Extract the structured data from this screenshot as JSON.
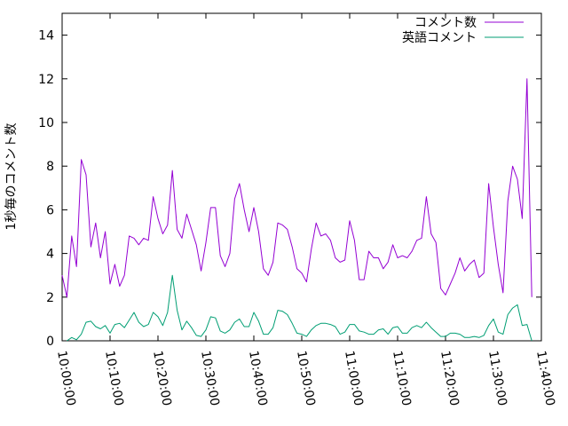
{
  "chart_data": {
    "type": "line",
    "ylabel": "1秒毎のコメント数",
    "xlabel": "",
    "ylim": [
      0,
      15
    ],
    "xlim": [
      "10:00:00",
      "11:40:00"
    ],
    "y_ticks": [
      0,
      2,
      4,
      6,
      8,
      10,
      12,
      14
    ],
    "x_ticks": [
      "10:00:00",
      "10:10:00",
      "10:20:00",
      "10:30:00",
      "10:40:00",
      "10:50:00",
      "11:00:00",
      "11:10:00",
      "11:20:00",
      "11:30:00",
      "11:40:00"
    ],
    "legend_position": "top-right",
    "grid": false,
    "series": [
      {
        "name": "コメント数",
        "color": "#9400d3",
        "points": [
          [
            "10:00:00",
            3.0
          ],
          [
            "10:01:00",
            2.0
          ],
          [
            "10:02:00",
            4.8
          ],
          [
            "10:03:00",
            3.4
          ],
          [
            "10:04:00",
            8.3
          ],
          [
            "10:05:00",
            7.6
          ],
          [
            "10:06:00",
            4.3
          ],
          [
            "10:07:00",
            5.4
          ],
          [
            "10:08:00",
            3.8
          ],
          [
            "10:09:00",
            5.0
          ],
          [
            "10:10:00",
            2.6
          ],
          [
            "10:11:00",
            3.5
          ],
          [
            "10:12:00",
            2.5
          ],
          [
            "10:13:00",
            3.0
          ],
          [
            "10:14:00",
            4.8
          ],
          [
            "10:15:00",
            4.7
          ],
          [
            "10:16:00",
            4.4
          ],
          [
            "10:17:00",
            4.7
          ],
          [
            "10:18:00",
            4.6
          ],
          [
            "10:19:00",
            6.6
          ],
          [
            "10:20:00",
            5.6
          ],
          [
            "10:21:00",
            4.9
          ],
          [
            "10:22:00",
            5.3
          ],
          [
            "10:23:00",
            7.8
          ],
          [
            "10:24:00",
            5.1
          ],
          [
            "10:25:00",
            4.7
          ],
          [
            "10:26:00",
            5.8
          ],
          [
            "10:27:00",
            5.1
          ],
          [
            "10:28:00",
            4.4
          ],
          [
            "10:29:00",
            3.2
          ],
          [
            "10:30:00",
            4.5
          ],
          [
            "10:31:00",
            6.1
          ],
          [
            "10:32:00",
            6.1
          ],
          [
            "10:33:00",
            3.9
          ],
          [
            "10:34:00",
            3.4
          ],
          [
            "10:35:00",
            4.0
          ],
          [
            "10:36:00",
            6.5
          ],
          [
            "10:37:00",
            7.2
          ],
          [
            "10:38:00",
            6.0
          ],
          [
            "10:39:00",
            5.0
          ],
          [
            "10:40:00",
            6.1
          ],
          [
            "10:41:00",
            5.0
          ],
          [
            "10:42:00",
            3.3
          ],
          [
            "10:43:00",
            3.0
          ],
          [
            "10:44:00",
            3.6
          ],
          [
            "10:45:00",
            5.4
          ],
          [
            "10:46:00",
            5.3
          ],
          [
            "10:47:00",
            5.1
          ],
          [
            "10:48:00",
            4.3
          ],
          [
            "10:49:00",
            3.3
          ],
          [
            "10:50:00",
            3.1
          ],
          [
            "10:51:00",
            2.7
          ],
          [
            "10:52:00",
            4.2
          ],
          [
            "10:53:00",
            5.4
          ],
          [
            "10:54:00",
            4.8
          ],
          [
            "10:55:00",
            4.9
          ],
          [
            "10:56:00",
            4.6
          ],
          [
            "10:57:00",
            3.8
          ],
          [
            "10:58:00",
            3.6
          ],
          [
            "10:59:00",
            3.7
          ],
          [
            "11:00:00",
            5.5
          ],
          [
            "11:01:00",
            4.6
          ],
          [
            "11:02:00",
            2.8
          ],
          [
            "11:03:00",
            2.8
          ],
          [
            "11:04:00",
            4.1
          ],
          [
            "11:05:00",
            3.8
          ],
          [
            "11:06:00",
            3.8
          ],
          [
            "11:07:00",
            3.3
          ],
          [
            "11:08:00",
            3.6
          ],
          [
            "11:09:00",
            4.4
          ],
          [
            "11:10:00",
            3.8
          ],
          [
            "11:11:00",
            3.9
          ],
          [
            "11:12:00",
            3.8
          ],
          [
            "11:13:00",
            4.1
          ],
          [
            "11:14:00",
            4.6
          ],
          [
            "11:15:00",
            4.7
          ],
          [
            "11:16:00",
            6.6
          ],
          [
            "11:17:00",
            4.9
          ],
          [
            "11:18:00",
            4.5
          ],
          [
            "11:19:00",
            2.4
          ],
          [
            "11:20:00",
            2.1
          ],
          [
            "11:21:00",
            2.6
          ],
          [
            "11:22:00",
            3.1
          ],
          [
            "11:23:00",
            3.8
          ],
          [
            "11:24:00",
            3.2
          ],
          [
            "11:25:00",
            3.5
          ],
          [
            "11:26:00",
            3.7
          ],
          [
            "11:27:00",
            2.9
          ],
          [
            "11:28:00",
            3.1
          ],
          [
            "11:29:00",
            7.2
          ],
          [
            "11:30:00",
            5.2
          ],
          [
            "11:31:00",
            3.5
          ],
          [
            "11:32:00",
            2.2
          ],
          [
            "11:33:00",
            6.4
          ],
          [
            "11:34:00",
            8.0
          ],
          [
            "11:35:00",
            7.4
          ],
          [
            "11:36:00",
            5.6
          ],
          [
            "11:37:00",
            12.0
          ],
          [
            "11:38:00",
            2.0
          ]
        ]
      },
      {
        "name": "英語コメント",
        "color": "#009e73",
        "points": [
          [
            "10:01:00",
            0.0
          ],
          [
            "10:02:00",
            0.15
          ],
          [
            "10:03:00",
            0.05
          ],
          [
            "10:04:00",
            0.3
          ],
          [
            "10:05:00",
            0.85
          ],
          [
            "10:06:00",
            0.9
          ],
          [
            "10:07:00",
            0.65
          ],
          [
            "10:08:00",
            0.55
          ],
          [
            "10:09:00",
            0.7
          ],
          [
            "10:10:00",
            0.35
          ],
          [
            "10:11:00",
            0.75
          ],
          [
            "10:12:00",
            0.8
          ],
          [
            "10:13:00",
            0.6
          ],
          [
            "10:14:00",
            0.95
          ],
          [
            "10:15:00",
            1.3
          ],
          [
            "10:16:00",
            0.85
          ],
          [
            "10:17:00",
            0.65
          ],
          [
            "10:18:00",
            0.75
          ],
          [
            "10:19:00",
            1.3
          ],
          [
            "10:20:00",
            1.1
          ],
          [
            "10:21:00",
            0.7
          ],
          [
            "10:22:00",
            1.3
          ],
          [
            "10:23:00",
            3.0
          ],
          [
            "10:24:00",
            1.4
          ],
          [
            "10:25:00",
            0.5
          ],
          [
            "10:26:00",
            0.9
          ],
          [
            "10:27:00",
            0.6
          ],
          [
            "10:28:00",
            0.25
          ],
          [
            "10:29:00",
            0.2
          ],
          [
            "10:30:00",
            0.5
          ],
          [
            "10:31:00",
            1.1
          ],
          [
            "10:32:00",
            1.05
          ],
          [
            "10:33:00",
            0.45
          ],
          [
            "10:34:00",
            0.35
          ],
          [
            "10:35:00",
            0.5
          ],
          [
            "10:36:00",
            0.85
          ],
          [
            "10:37:00",
            1.0
          ],
          [
            "10:38:00",
            0.65
          ],
          [
            "10:39:00",
            0.65
          ],
          [
            "10:40:00",
            1.3
          ],
          [
            "10:41:00",
            0.9
          ],
          [
            "10:42:00",
            0.3
          ],
          [
            "10:43:00",
            0.3
          ],
          [
            "10:44:00",
            0.6
          ],
          [
            "10:45:00",
            1.4
          ],
          [
            "10:46:00",
            1.35
          ],
          [
            "10:47:00",
            1.2
          ],
          [
            "10:48:00",
            0.8
          ],
          [
            "10:49:00",
            0.35
          ],
          [
            "10:50:00",
            0.3
          ],
          [
            "10:51:00",
            0.2
          ],
          [
            "10:52:00",
            0.5
          ],
          [
            "10:53:00",
            0.7
          ],
          [
            "10:54:00",
            0.8
          ],
          [
            "10:55:00",
            0.8
          ],
          [
            "10:56:00",
            0.75
          ],
          [
            "10:57:00",
            0.65
          ],
          [
            "10:58:00",
            0.3
          ],
          [
            "10:59:00",
            0.4
          ],
          [
            "11:00:00",
            0.75
          ],
          [
            "11:01:00",
            0.75
          ],
          [
            "11:02:00",
            0.45
          ],
          [
            "11:03:00",
            0.4
          ],
          [
            "11:04:00",
            0.3
          ],
          [
            "11:05:00",
            0.3
          ],
          [
            "11:06:00",
            0.5
          ],
          [
            "11:07:00",
            0.55
          ],
          [
            "11:08:00",
            0.3
          ],
          [
            "11:09:00",
            0.6
          ],
          [
            "11:10:00",
            0.65
          ],
          [
            "11:11:00",
            0.35
          ],
          [
            "11:12:00",
            0.35
          ],
          [
            "11:13:00",
            0.6
          ],
          [
            "11:14:00",
            0.7
          ],
          [
            "11:15:00",
            0.6
          ],
          [
            "11:16:00",
            0.85
          ],
          [
            "11:17:00",
            0.6
          ],
          [
            "11:18:00",
            0.4
          ],
          [
            "11:19:00",
            0.2
          ],
          [
            "11:20:00",
            0.2
          ],
          [
            "11:21:00",
            0.35
          ],
          [
            "11:22:00",
            0.35
          ],
          [
            "11:23:00",
            0.3
          ],
          [
            "11:24:00",
            0.15
          ],
          [
            "11:25:00",
            0.15
          ],
          [
            "11:26:00",
            0.2
          ],
          [
            "11:27:00",
            0.15
          ],
          [
            "11:28:00",
            0.25
          ],
          [
            "11:29:00",
            0.7
          ],
          [
            "11:30:00",
            1.0
          ],
          [
            "11:31:00",
            0.4
          ],
          [
            "11:32:00",
            0.3
          ],
          [
            "11:33:00",
            1.2
          ],
          [
            "11:34:00",
            1.5
          ],
          [
            "11:35:00",
            1.65
          ],
          [
            "11:36:00",
            0.7
          ],
          [
            "11:37:00",
            0.75
          ],
          [
            "11:38:00",
            0.0
          ]
        ]
      }
    ]
  }
}
